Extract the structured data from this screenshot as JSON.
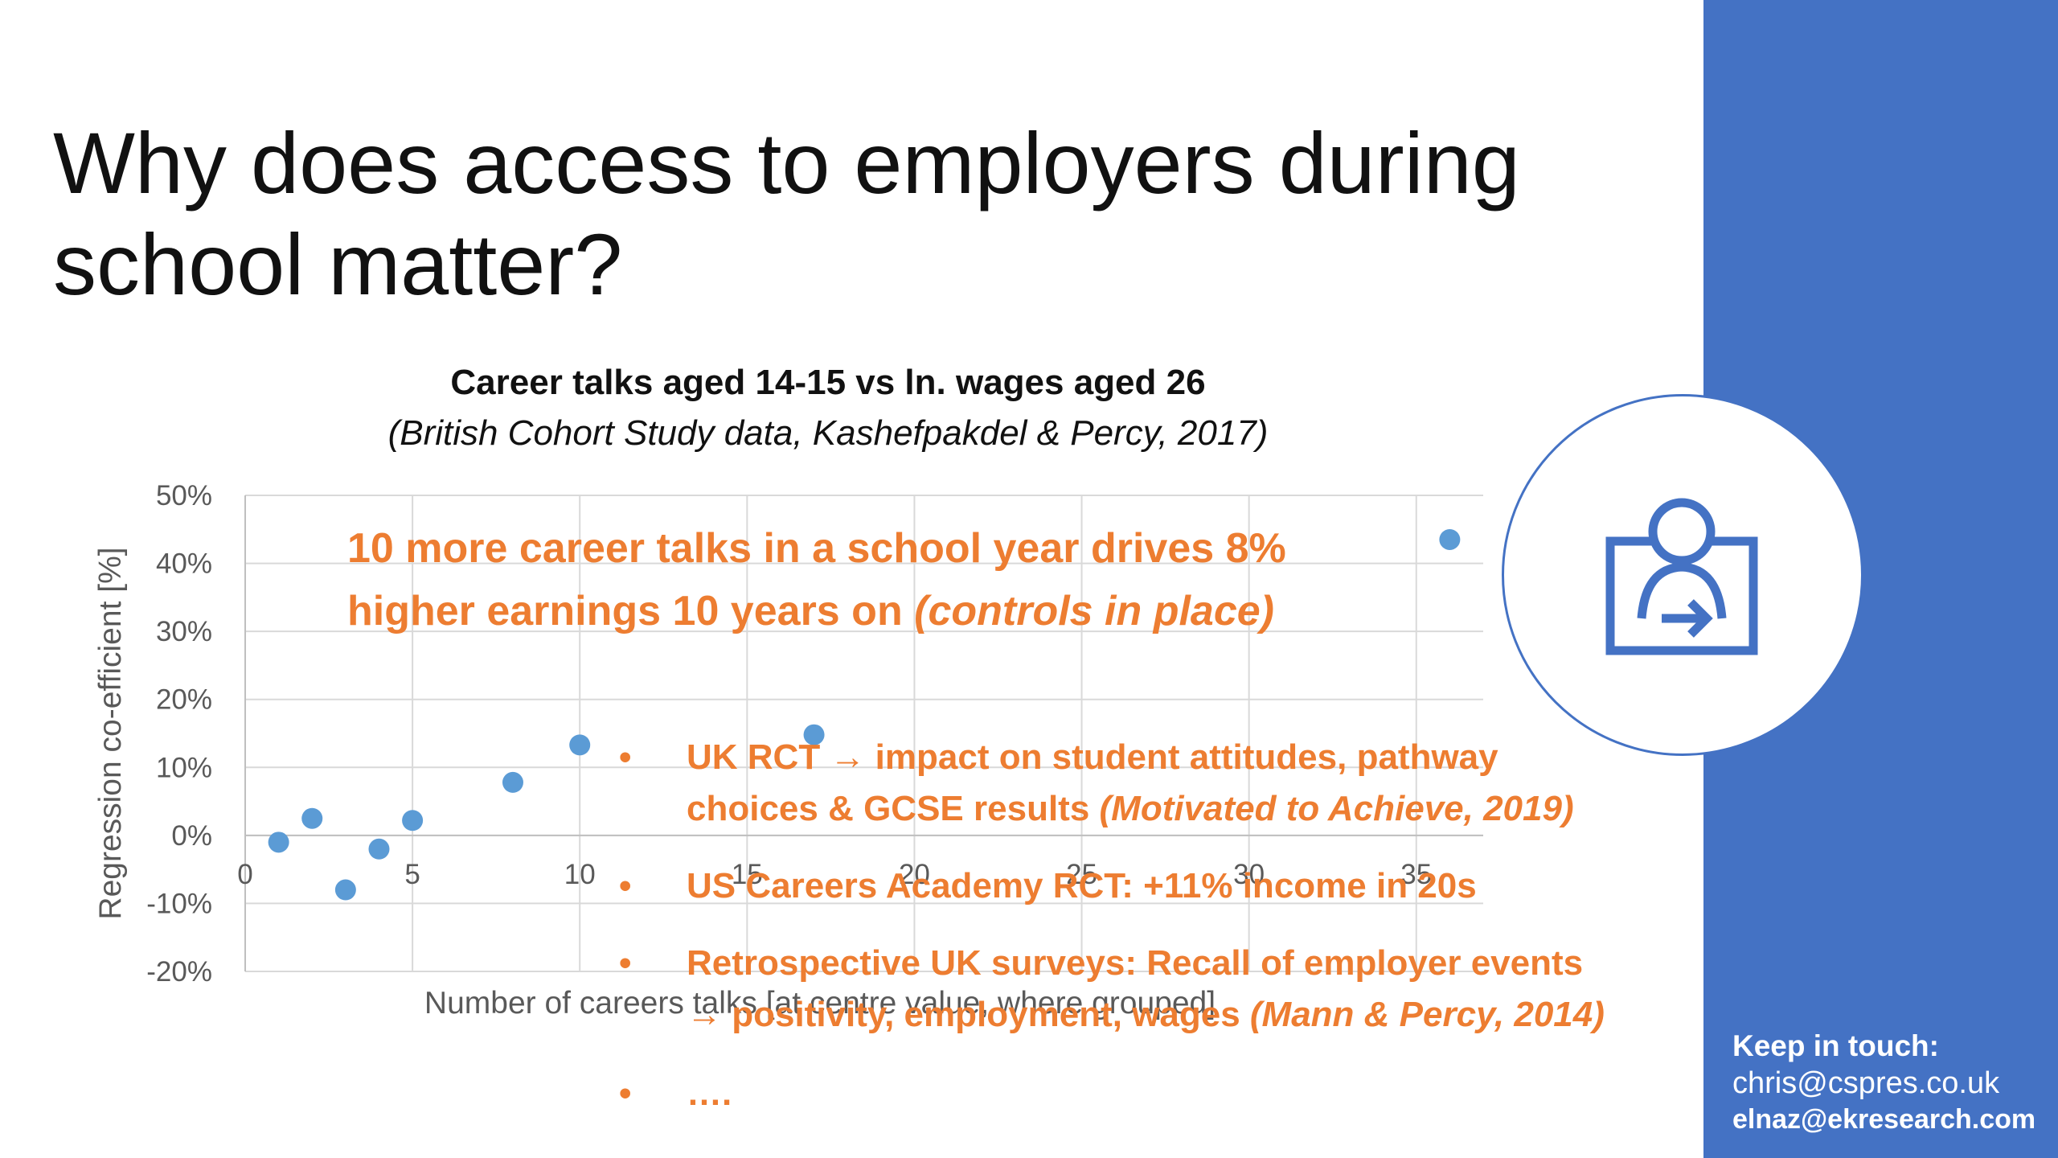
{
  "slide": {
    "title_line1": "Why does access to employers during",
    "title_line2": "school matter?",
    "accent_color": "#4472c4",
    "highlight_color": "#ed7d31"
  },
  "icon": {
    "name": "presenter-screen-icon"
  },
  "contact": {
    "heading": "Keep in touch:",
    "email_1": "chris@cspres.co.uk",
    "email_2": "elnaz@ekresearch.com"
  },
  "callout": {
    "line1": "10 more career talks in a school year drives 8%",
    "line2_a": "higher earnings 10 years on ",
    "line2_b": "(controls in place)"
  },
  "bullets": [
    {
      "line1": "UK RCT → impact on student attitudes, pathway",
      "line2_a": "choices & GCSE results ",
      "line2_b": "(Motivated to Achieve, 2019)"
    },
    {
      "line1": "US Careers Academy RCT: +11% income in 20s"
    },
    {
      "line1": "Retrospective UK surveys: Recall of employer events",
      "line2_a": "→ positivity, employment, wages ",
      "line2_b": "(Mann & Percy, 2014)"
    },
    {
      "line1": "…."
    }
  ],
  "chart_data": {
    "type": "scatter",
    "title": "Career talks aged 14-15 vs ln. wages aged 26",
    "subtitle": "(British Cohort Study data, Kashefpakdel & Percy, 2017)",
    "xlabel": "Number of careers talks [at centre value, where grouped]",
    "ylabel": "Regression co-efficient [%]",
    "xlim": [
      0,
      37
    ],
    "ylim": [
      -20,
      50
    ],
    "x_ticks": [
      0,
      5,
      10,
      15,
      20,
      25,
      30,
      35
    ],
    "y_ticks": [
      50,
      40,
      30,
      20,
      10,
      0,
      -10,
      -20
    ],
    "y_tick_labels": [
      "50%",
      "40%",
      "30%",
      "20%",
      "10%",
      "0%",
      "-10%",
      "-20%"
    ],
    "grid": true,
    "marker_color": "#5b9bd5",
    "points": [
      {
        "x": 1,
        "y": -1
      },
      {
        "x": 2,
        "y": 2.5
      },
      {
        "x": 3,
        "y": -8
      },
      {
        "x": 4,
        "y": -2
      },
      {
        "x": 5,
        "y": 2.2
      },
      {
        "x": 8,
        "y": 7.8
      },
      {
        "x": 10,
        "y": 13.3
      },
      {
        "x": 17,
        "y": 14.8
      },
      {
        "x": 36,
        "y": 43.5
      }
    ]
  }
}
